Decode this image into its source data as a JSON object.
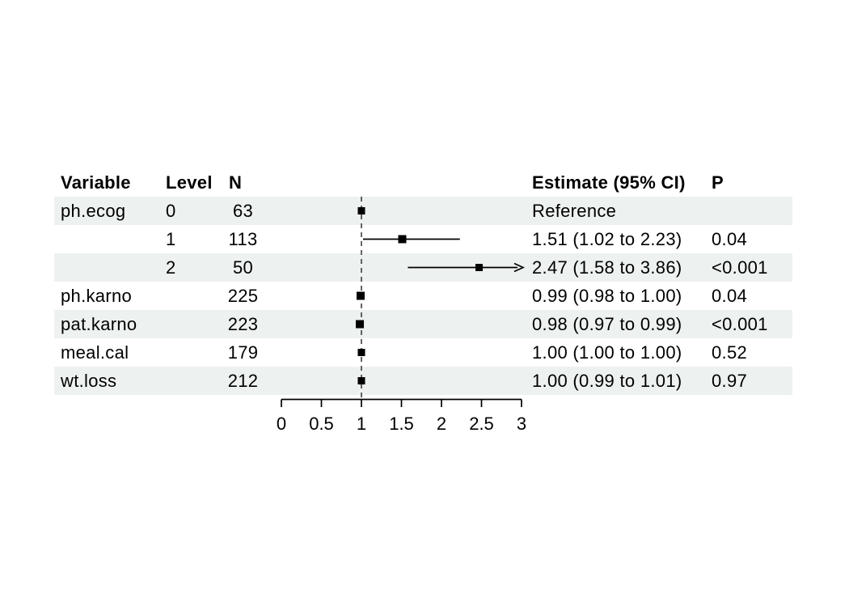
{
  "chart_data": {
    "type": "forest",
    "columns": [
      "Variable",
      "Level",
      "N",
      "Estimate (95% CI)",
      "P"
    ],
    "rows": [
      {
        "variable": "ph.ecog",
        "level": "0",
        "n": "63",
        "estimate_label": "Reference",
        "p": "",
        "estimate": 1.0,
        "ci_low": null,
        "ci_high": null,
        "marker_size": 9,
        "shaded": true
      },
      {
        "variable": "",
        "level": "1",
        "n": "113",
        "estimate_label": "1.51 (1.02 to 2.23)",
        "p": "0.04",
        "estimate": 1.51,
        "ci_low": 1.02,
        "ci_high": 2.23,
        "marker_size": 10,
        "shaded": false
      },
      {
        "variable": "",
        "level": "2",
        "n": "50",
        "estimate_label": "2.47 (1.58 to 3.86)",
        "p": "<0.001",
        "estimate": 2.47,
        "ci_low": 1.58,
        "ci_high": 3.86,
        "marker_size": 9,
        "shaded": true
      },
      {
        "variable": "ph.karno",
        "level": "",
        "n": "225",
        "estimate_label": "0.99 (0.98 to 1.00)",
        "p": "0.04",
        "estimate": 0.99,
        "ci_low": 0.98,
        "ci_high": 1.0,
        "marker_size": 10,
        "shaded": false
      },
      {
        "variable": "pat.karno",
        "level": "",
        "n": "223",
        "estimate_label": "0.98 (0.97 to 0.99)",
        "p": "<0.001",
        "estimate": 0.98,
        "ci_low": 0.97,
        "ci_high": 0.99,
        "marker_size": 10,
        "shaded": true
      },
      {
        "variable": "meal.cal",
        "level": "",
        "n": "179",
        "estimate_label": "1.00 (1.00 to 1.00)",
        "p": "0.52",
        "estimate": 1.0,
        "ci_low": 1.0,
        "ci_high": 1.0,
        "marker_size": 9,
        "shaded": false
      },
      {
        "variable": "wt.loss",
        "level": "",
        "n": "212",
        "estimate_label": "1.00 (0.99 to 1.01)",
        "p": "0.97",
        "estimate": 1.0,
        "ci_low": 0.99,
        "ci_high": 1.01,
        "marker_size": 9,
        "shaded": true
      }
    ],
    "axis": {
      "min": 0,
      "max": 3,
      "ticks": [
        0,
        0.5,
        1,
        1.5,
        2,
        2.5,
        3
      ],
      "tick_labels": [
        "0",
        "0.5",
        "1",
        "1.5",
        "2",
        "2.5",
        "3"
      ],
      "reference_line": 1
    }
  },
  "colors": {
    "band": "#edf1ef",
    "text": "#000000",
    "line": "#000000",
    "marker": "#000000",
    "dashed": "#3f3f3f"
  }
}
